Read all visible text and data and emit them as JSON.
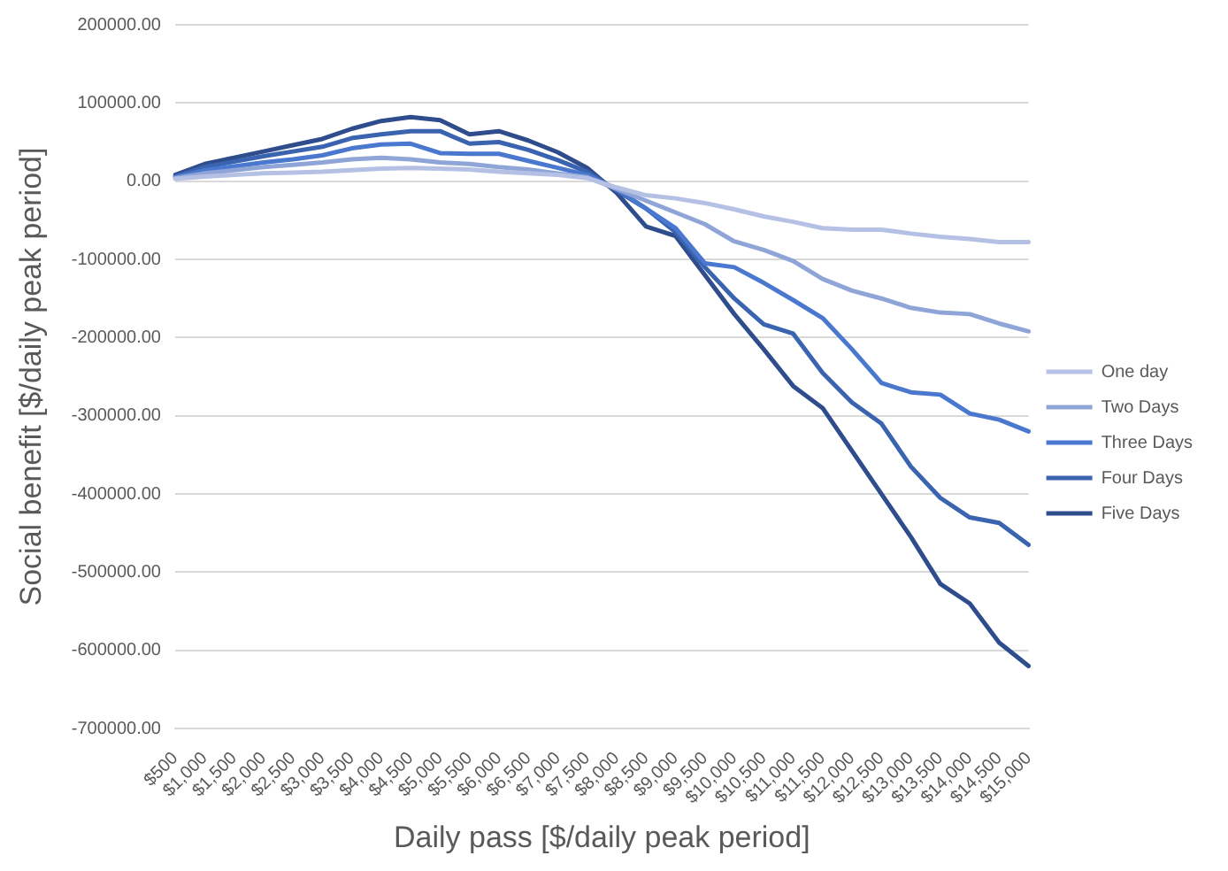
{
  "chart_data": {
    "type": "line",
    "xlabel": "Daily pass [$/daily peak period]",
    "ylabel": "Social benefit [$/daily peak period]",
    "categories": [
      "$500",
      "$1,000",
      "$1,500",
      "$2,000",
      "$2,500",
      "$3,000",
      "$3,500",
      "$4,000",
      "$4,500",
      "$5,000",
      "$5,500",
      "$6,000",
      "$6,500",
      "$7,000",
      "$7,500",
      "$8,000",
      "$8,500",
      "$9,000",
      "$9,500",
      "$10,000",
      "$10,500",
      "$11,000",
      "$11,500",
      "$12,000",
      "$12,500",
      "$13,000",
      "$13,500",
      "$14,000",
      "$14,500",
      "$15,000"
    ],
    "series": [
      {
        "name": "One day",
        "color": "#b4c0e4",
        "values": [
          3000,
          6000,
          8000,
          10000,
          11000,
          12000,
          14000,
          16000,
          17000,
          16000,
          15000,
          12000,
          10000,
          8000,
          4000,
          -8000,
          -18000,
          -22000,
          -28000,
          -36000,
          -45000,
          -52000,
          -60000,
          -62000,
          -62000,
          -67000,
          -71000,
          -74000,
          -78000,
          -78000
        ]
      },
      {
        "name": "Two Days",
        "color": "#8fa5d8",
        "values": [
          4000,
          10000,
          14000,
          18000,
          21000,
          24000,
          28000,
          30000,
          28000,
          24000,
          22000,
          18000,
          15000,
          10000,
          5000,
          -10000,
          -25000,
          -40000,
          -55000,
          -77000,
          -88000,
          -102000,
          -125000,
          -140000,
          -150000,
          -162000,
          -168000,
          -170000,
          -182000,
          -192000
        ]
      },
      {
        "name": "Three Days",
        "color": "#4a78cf",
        "values": [
          5000,
          14000,
          19000,
          24000,
          28000,
          33000,
          42000,
          47000,
          48000,
          36000,
          35000,
          35000,
          26000,
          17000,
          8000,
          -10000,
          -35000,
          -60000,
          -105000,
          -110000,
          -130000,
          -152000,
          -175000,
          -215000,
          -258000,
          -270000,
          -273000,
          -297000,
          -305000,
          -320000
        ]
      },
      {
        "name": "Four Days",
        "color": "#3a64b0",
        "values": [
          6000,
          18000,
          25000,
          32000,
          38000,
          44000,
          55000,
          60000,
          64000,
          64000,
          48000,
          50000,
          40000,
          27000,
          12000,
          -12000,
          -35000,
          -65000,
          -110000,
          -150000,
          -183000,
          -195000,
          -245000,
          -283000,
          -310000,
          -365000,
          -405000,
          -430000,
          -437000,
          -465000
        ]
      },
      {
        "name": "Five Days",
        "color": "#2f4d8c",
        "values": [
          8000,
          22000,
          30000,
          38000,
          46000,
          54000,
          67000,
          77000,
          82000,
          78000,
          60000,
          64000,
          52000,
          37000,
          17000,
          -15000,
          -58000,
          -70000,
          -120000,
          -170000,
          -215000,
          -262000,
          -290000,
          -345000,
          -400000,
          -455000,
          -515000,
          -540000,
          -590000,
          -620000
        ]
      }
    ],
    "ylim": [
      -700000,
      200000
    ],
    "yticks": [
      {
        "value": -700000,
        "label": "-700000.00"
      },
      {
        "value": -600000,
        "label": "-600000.00"
      },
      {
        "value": -500000,
        "label": "-500000.00"
      },
      {
        "value": -400000,
        "label": "-400000.00"
      },
      {
        "value": -300000,
        "label": "-300000.00"
      },
      {
        "value": -200000,
        "label": "-200000.00"
      },
      {
        "value": -100000,
        "label": "-100000.00"
      },
      {
        "value": 0,
        "label": "0.00"
      },
      {
        "value": 100000,
        "label": "100000.00"
      },
      {
        "value": 200000,
        "label": "200000.00"
      }
    ],
    "grid": "y",
    "legend": "right",
    "marker": "none",
    "line_style": "solid"
  }
}
